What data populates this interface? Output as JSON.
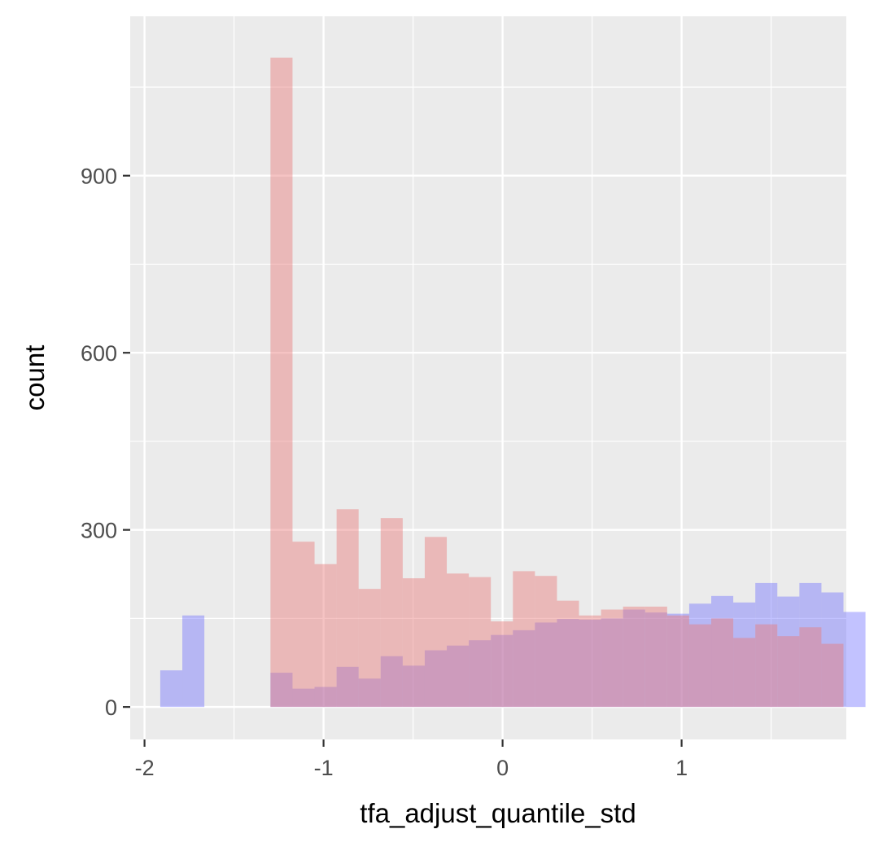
{
  "chart_data": {
    "type": "histogram",
    "title": "",
    "xlabel": "tfa_adjust_quantile_std",
    "ylabel": "count",
    "xlim": [
      -2.08,
      1.92
    ],
    "ylim": [
      -55,
      1170
    ],
    "x_ticks": [
      -2,
      -1,
      0,
      1
    ],
    "x_tick_labels": [
      "-2",
      "-1",
      "0",
      "1"
    ],
    "x_minor_ticks": [
      -1.5,
      -0.5,
      0.5,
      1.5
    ],
    "y_ticks": [
      0,
      300,
      600,
      900
    ],
    "y_tick_labels": [
      "0",
      "300",
      "600",
      "900"
    ],
    "y_minor_ticks": [
      150,
      450,
      750,
      1050
    ],
    "grid": true,
    "legend": "none",
    "bin_width": 0.1231,
    "bin_start": -1.912,
    "series": [
      {
        "color": "#6666ff",
        "opacity": 0.4,
        "values": [
          62,
          155,
          0,
          0,
          0,
          58,
          31,
          34,
          68,
          48,
          86,
          70,
          96,
          104,
          113,
          122,
          130,
          143,
          149,
          148,
          150,
          165,
          160,
          158,
          175,
          188,
          177,
          210,
          187,
          210,
          194,
          161
        ]
      },
      {
        "color": "#e87b7b",
        "opacity": 0.45,
        "values": [
          0,
          0,
          0,
          0,
          0,
          1100,
          280,
          242,
          335,
          200,
          320,
          218,
          288,
          226,
          220,
          145,
          230,
          222,
          180,
          155,
          165,
          170,
          170,
          155,
          140,
          150,
          117,
          140,
          120,
          135,
          107,
          0
        ]
      }
    ]
  }
}
